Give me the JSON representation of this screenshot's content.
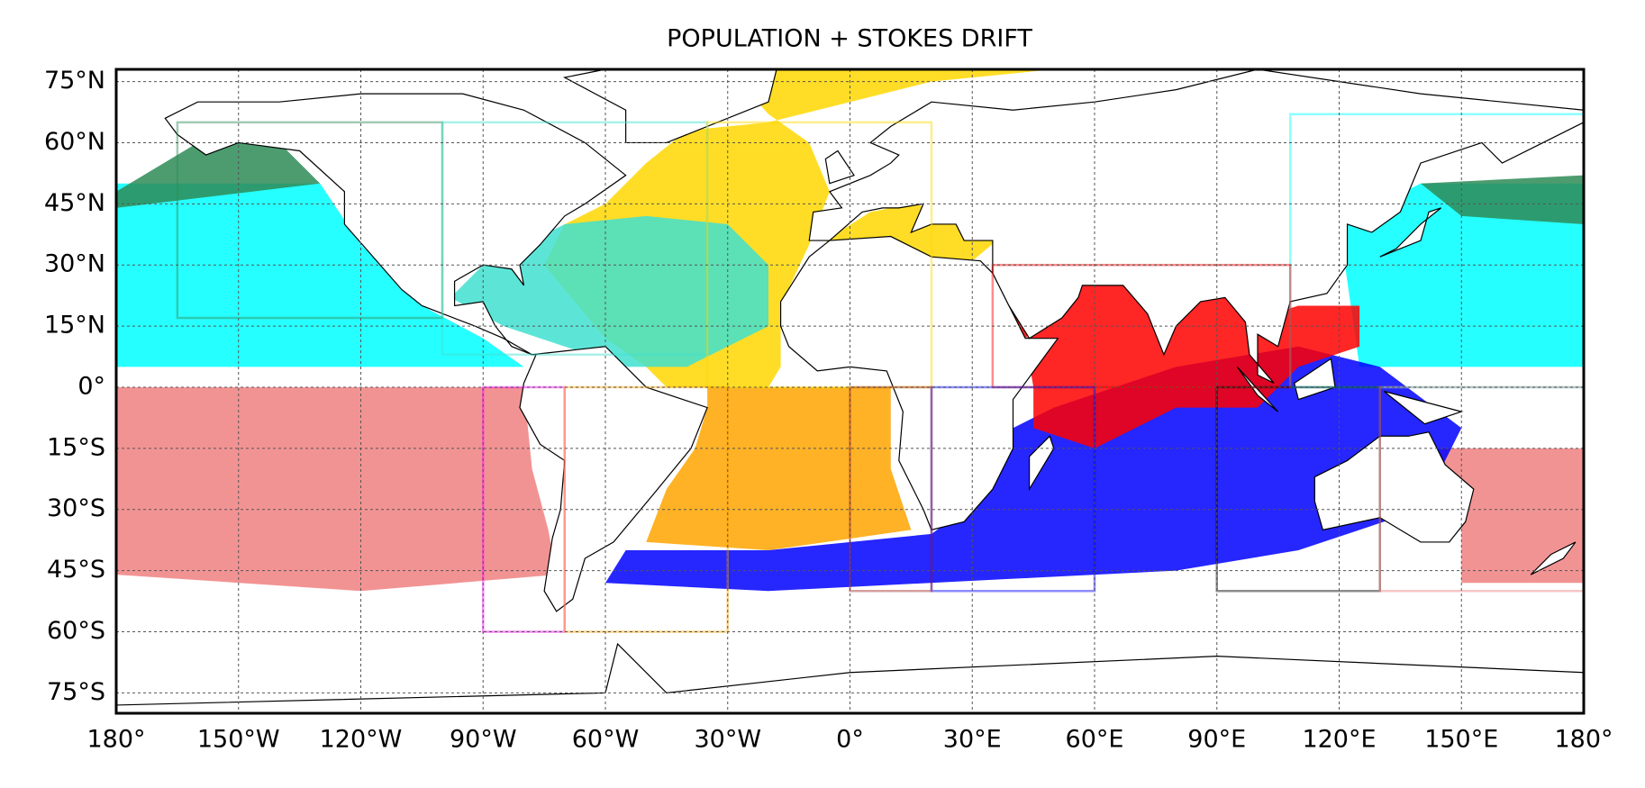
{
  "chart_data": {
    "type": "map",
    "title": "POPULATION + STOKES DRIFT",
    "xlim": [
      -180,
      180
    ],
    "ylim": [
      -80,
      78
    ],
    "xticks": [
      {
        "value": -180,
        "label": "180°"
      },
      {
        "value": -150,
        "label": "150°W"
      },
      {
        "value": -120,
        "label": "120°W"
      },
      {
        "value": -90,
        "label": "90°W"
      },
      {
        "value": -60,
        "label": "60°W"
      },
      {
        "value": -30,
        "label": "30°W"
      },
      {
        "value": 0,
        "label": "0°"
      },
      {
        "value": 30,
        "label": "30°E"
      },
      {
        "value": 60,
        "label": "60°E"
      },
      {
        "value": 90,
        "label": "90°E"
      },
      {
        "value": 120,
        "label": "120°E"
      },
      {
        "value": 150,
        "label": "150°E"
      },
      {
        "value": 180,
        "label": "180°"
      }
    ],
    "yticks": [
      {
        "value": 75,
        "label": "75°N"
      },
      {
        "value": 60,
        "label": "60°N"
      },
      {
        "value": 45,
        "label": "45°N"
      },
      {
        "value": 30,
        "label": "30°N"
      },
      {
        "value": 15,
        "label": "15°N"
      },
      {
        "value": 0,
        "label": "0°"
      },
      {
        "value": -15,
        "label": "15°S"
      },
      {
        "value": -30,
        "label": "30°S"
      },
      {
        "value": -45,
        "label": "45°S"
      },
      {
        "value": -60,
        "label": "60°S"
      },
      {
        "value": -75,
        "label": "75°S"
      }
    ],
    "grid": true,
    "regions": [
      {
        "color": "#2e8b57",
        "lon": [
          -165,
          -100
        ],
        "lat": [
          17,
          65
        ]
      },
      {
        "color": "#40e0d0",
        "lon": [
          -100,
          -35
        ],
        "lat": [
          8,
          65
        ]
      },
      {
        "color": "#ffd700",
        "lon": [
          -35,
          20
        ],
        "lat": [
          0,
          65
        ]
      },
      {
        "color": "#00ffff",
        "lon": [
          108,
          180
        ],
        "lat": [
          0,
          67
        ]
      },
      {
        "color": "#ff0000",
        "lon": [
          35,
          108
        ],
        "lat": [
          0,
          30
        ]
      },
      {
        "color": "#0000ff",
        "lon": [
          20,
          60
        ],
        "lat": [
          -50,
          0
        ]
      },
      {
        "color": "#000000",
        "lon": [
          90,
          130
        ],
        "lat": [
          -50,
          0
        ]
      },
      {
        "color": "#f08080",
        "lon": [
          130,
          180
        ],
        "lat": [
          -50,
          0
        ]
      },
      {
        "color": "#ff00ff",
        "lon": [
          -90,
          -70
        ],
        "lat": [
          -60,
          0
        ]
      },
      {
        "color": "#ffa500",
        "lon": [
          -70,
          -30
        ],
        "lat": [
          -60,
          0
        ]
      },
      {
        "color": "#a52a2a",
        "lon": [
          0,
          20
        ],
        "lat": [
          -50,
          0
        ]
      }
    ]
  }
}
